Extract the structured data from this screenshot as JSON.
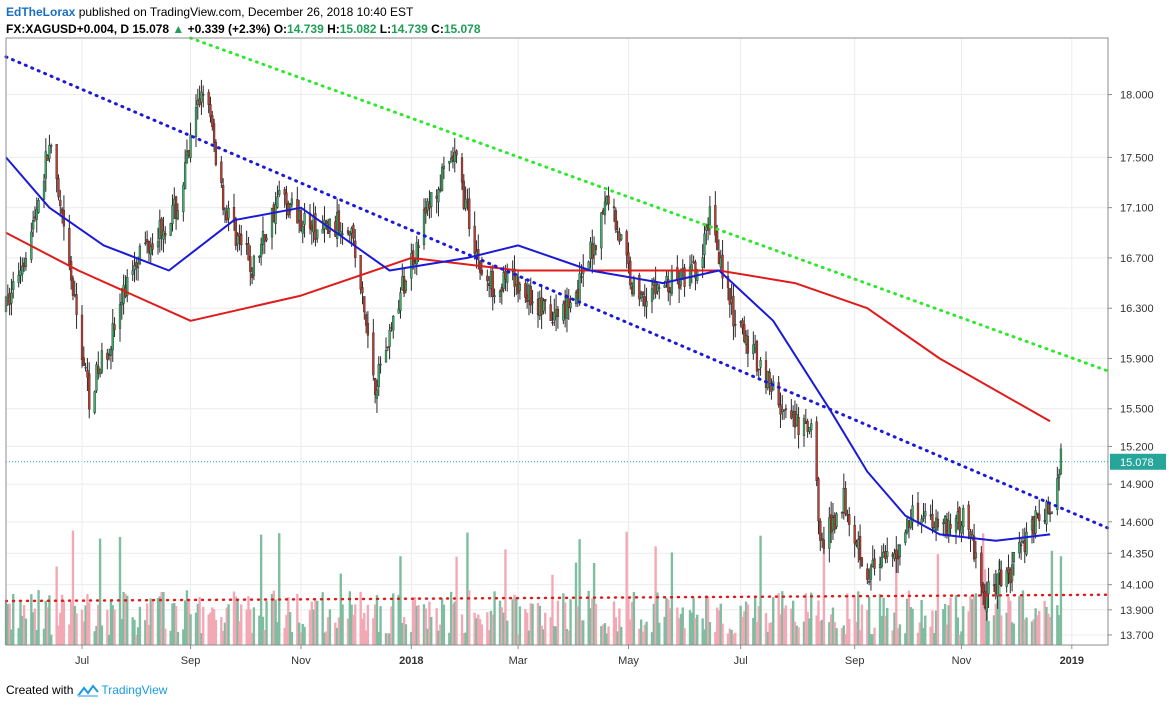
{
  "header": {
    "author": "EdTheLorax",
    "published": " published on TradingView.com, December 26, 2018 10:40 EST",
    "symbol": "FX:XAGUSD+0.004, D",
    "price": " 15.078 ",
    "change_arrow": "▲",
    "change": " +0.339 (+2.3%) ",
    "open_label": "O:",
    "open": "14.739",
    "high_label": " H:",
    "high": "15.082",
    "low_label": " L:",
    "low": "14.739",
    "close_label": " C:",
    "close": "15.078"
  },
  "footer": {
    "created": "Created with",
    "brand": "TradingView"
  },
  "colors": {
    "up": "#7ebda0",
    "down": "#f3a8b5",
    "ma50": "#1a1ad8",
    "ma200": "#e01b1b",
    "channel": "#1a1ad8",
    "resistance": "#2ee82e",
    "support": "#e01b1b",
    "price_tag": "#26a69a"
  },
  "chart_data": {
    "type": "candlestick",
    "x_tick_labels": [
      "Jul",
      "Sep",
      "Nov",
      "2018",
      "Mar",
      "May",
      "Jul",
      "Sep",
      "Nov",
      "2019"
    ],
    "y_tick_labels": [
      "18.000",
      "17.500",
      "17.100",
      "16.700",
      "16.300",
      "15.900",
      "15.500",
      "15.200",
      "14.900",
      "14.600",
      "14.350",
      "14.100",
      "13.900",
      "13.700"
    ],
    "last_price": "15.078",
    "x_range": [
      "2017-05-22",
      "2019-01-21"
    ],
    "y_range": [
      13.62,
      18.45
    ],
    "key_points": [
      {
        "date": "2017-05-22",
        "close": 16.3
      },
      {
        "date": "2017-06-05",
        "close": 16.9
      },
      {
        "date": "2017-06-15",
        "close": 17.6
      },
      {
        "date": "2017-07-07",
        "close": 15.6
      },
      {
        "date": "2017-07-20",
        "close": 16.1
      },
      {
        "date": "2017-08-01",
        "close": 16.7
      },
      {
        "date": "2017-08-25",
        "close": 17.1
      },
      {
        "date": "2017-09-08",
        "close": 18.1
      },
      {
        "date": "2017-09-20",
        "close": 17.1
      },
      {
        "date": "2017-10-05",
        "close": 16.6
      },
      {
        "date": "2017-10-20",
        "close": 17.2
      },
      {
        "date": "2017-11-10",
        "close": 16.9
      },
      {
        "date": "2017-11-28",
        "close": 17.0
      },
      {
        "date": "2017-12-12",
        "close": 15.7
      },
      {
        "date": "2017-12-28",
        "close": 16.5
      },
      {
        "date": "2018-01-10",
        "close": 17.1
      },
      {
        "date": "2018-01-25",
        "close": 17.5
      },
      {
        "date": "2018-02-10",
        "close": 16.5
      },
      {
        "date": "2018-03-01",
        "close": 16.5
      },
      {
        "date": "2018-03-20",
        "close": 16.2
      },
      {
        "date": "2018-04-05",
        "close": 16.5
      },
      {
        "date": "2018-04-20",
        "close": 17.2
      },
      {
        "date": "2018-05-05",
        "close": 16.4
      },
      {
        "date": "2018-05-25",
        "close": 16.5
      },
      {
        "date": "2018-06-10",
        "close": 16.6
      },
      {
        "date": "2018-06-15",
        "close": 17.1
      },
      {
        "date": "2018-06-28",
        "close": 16.2
      },
      {
        "date": "2018-07-15",
        "close": 15.8
      },
      {
        "date": "2018-07-28",
        "close": 15.4
      },
      {
        "date": "2018-08-10",
        "close": 15.3
      },
      {
        "date": "2018-08-16",
        "close": 14.4
      },
      {
        "date": "2018-08-28",
        "close": 14.8
      },
      {
        "date": "2018-09-10",
        "close": 14.2
      },
      {
        "date": "2018-09-25",
        "close": 14.3
      },
      {
        "date": "2018-10-05",
        "close": 14.7
      },
      {
        "date": "2018-10-20",
        "close": 14.6
      },
      {
        "date": "2018-11-05",
        "close": 14.6
      },
      {
        "date": "2018-11-13",
        "close": 14.0
      },
      {
        "date": "2018-11-28",
        "close": 14.2
      },
      {
        "date": "2018-12-10",
        "close": 14.6
      },
      {
        "date": "2018-12-21",
        "close": 14.7
      },
      {
        "date": "2018-12-26",
        "close": 15.078
      }
    ],
    "trendlines": [
      {
        "name": "upper-resistance",
        "style": "dotted",
        "from": {
          "date": "2017-09-01",
          "price": 18.45
        },
        "to": {
          "date": "2019-01-21",
          "price": 15.8
        }
      },
      {
        "name": "descending-channel",
        "style": "dotted",
        "from": {
          "date": "2017-05-22",
          "price": 18.3
        },
        "to": {
          "date": "2019-01-21",
          "price": 14.55
        }
      },
      {
        "name": "horizontal-support",
        "style": "dotted",
        "from": {
          "date": "2017-05-22",
          "price": 13.97
        },
        "to": {
          "date": "2019-01-21",
          "price": 14.02
        }
      }
    ],
    "ma200_points": [
      {
        "date": "2017-05-22",
        "value": 16.9
      },
      {
        "date": "2017-07-01",
        "value": 16.6
      },
      {
        "date": "2017-09-01",
        "value": 16.2
      },
      {
        "date": "2017-11-01",
        "value": 16.4
      },
      {
        "date": "2018-01-01",
        "value": 16.7
      },
      {
        "date": "2018-03-01",
        "value": 16.6
      },
      {
        "date": "2018-05-01",
        "value": 16.6
      },
      {
        "date": "2018-06-20",
        "value": 16.6
      },
      {
        "date": "2018-08-01",
        "value": 16.5
      },
      {
        "date": "2018-09-10",
        "value": 16.3
      },
      {
        "date": "2018-10-20",
        "value": 15.9
      },
      {
        "date": "2018-12-20",
        "value": 15.4
      }
    ],
    "ma50_points": [
      {
        "date": "2017-05-22",
        "value": 17.5
      },
      {
        "date": "2017-06-15",
        "value": 17.1
      },
      {
        "date": "2017-07-15",
        "value": 16.8
      },
      {
        "date": "2017-08-20",
        "value": 16.6
      },
      {
        "date": "2017-09-25",
        "value": 17.0
      },
      {
        "date": "2017-11-01",
        "value": 17.1
      },
      {
        "date": "2017-12-20",
        "value": 16.6
      },
      {
        "date": "2018-02-01",
        "value": 16.7
      },
      {
        "date": "2018-03-01",
        "value": 16.8
      },
      {
        "date": "2018-04-10",
        "value": 16.6
      },
      {
        "date": "2018-05-20",
        "value": 16.5
      },
      {
        "date": "2018-06-20",
        "value": 16.6
      },
      {
        "date": "2018-07-20",
        "value": 16.2
      },
      {
        "date": "2018-08-20",
        "value": 15.5
      },
      {
        "date": "2018-09-10",
        "value": 15.0
      },
      {
        "date": "2018-10-01",
        "value": 14.65
      },
      {
        "date": "2018-10-20",
        "value": 14.5
      },
      {
        "date": "2018-11-20",
        "value": 14.45
      },
      {
        "date": "2018-12-20",
        "value": 14.5
      }
    ]
  }
}
